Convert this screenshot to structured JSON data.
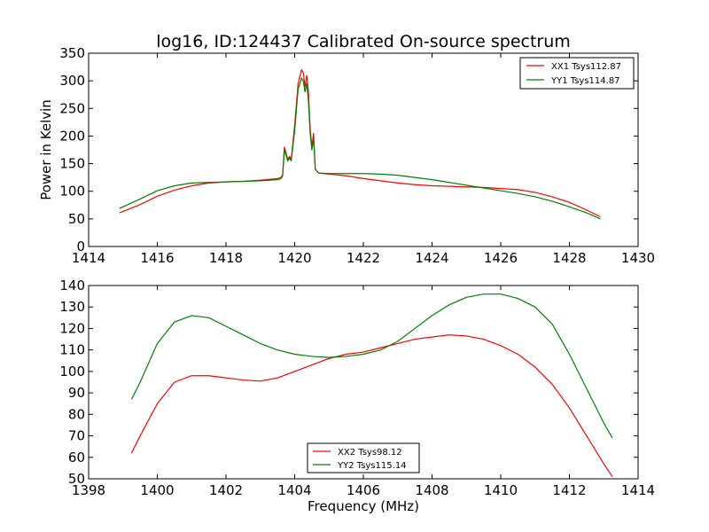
{
  "figure": {
    "title": "log16, ID:124437 Calibrated On-source spectrum"
  },
  "chart_data": [
    {
      "type": "line",
      "ylabel": "Power in Kelvin",
      "xlabel": "",
      "xlim": [
        1414,
        1430
      ],
      "ylim": [
        0,
        350
      ],
      "xticks": [
        1414,
        1416,
        1418,
        1420,
        1422,
        1424,
        1426,
        1428,
        1430
      ],
      "yticks": [
        0,
        50,
        100,
        150,
        200,
        250,
        300,
        350
      ],
      "grid": false,
      "legend_position": "top-right",
      "series": [
        {
          "name": "XX1 Tsys112.87",
          "color": "#ff0000",
          "x": [
            1414.9,
            1415.5,
            1416.0,
            1416.5,
            1417.0,
            1417.5,
            1418.0,
            1418.5,
            1419.0,
            1419.5,
            1419.6,
            1419.65,
            1419.7,
            1419.8,
            1419.85,
            1419.9,
            1420.0,
            1420.1,
            1420.2,
            1420.25,
            1420.3,
            1420.35,
            1420.4,
            1420.45,
            1420.5,
            1420.55,
            1420.6,
            1420.7,
            1421.0,
            1421.5,
            1422.0,
            1422.5,
            1423.0,
            1423.5,
            1424.0,
            1424.5,
            1425.0,
            1425.5,
            1426.0,
            1426.5,
            1427.0,
            1427.5,
            1428.0,
            1428.5,
            1428.9
          ],
          "y": [
            61,
            76,
            91,
            102,
            110,
            115,
            117,
            118,
            120,
            123,
            125,
            130,
            180,
            158,
            163,
            158,
            220,
            295,
            320,
            315,
            290,
            310,
            280,
            215,
            180,
            205,
            140,
            133,
            131,
            128,
            123,
            119,
            115,
            112,
            110,
            109,
            108,
            107,
            105,
            103,
            98,
            90,
            80,
            66,
            54
          ]
        },
        {
          "name": "YY1 Tsys114.87",
          "color": "#008000",
          "x": [
            1414.9,
            1415.5,
            1416.0,
            1416.5,
            1417.0,
            1417.5,
            1418.0,
            1418.5,
            1419.0,
            1419.5,
            1419.6,
            1419.65,
            1419.7,
            1419.8,
            1419.85,
            1419.9,
            1420.0,
            1420.1,
            1420.2,
            1420.25,
            1420.3,
            1420.35,
            1420.4,
            1420.45,
            1420.5,
            1420.55,
            1420.6,
            1420.7,
            1421.0,
            1421.5,
            1422.0,
            1422.5,
            1423.0,
            1423.5,
            1424.0,
            1424.5,
            1425.0,
            1425.5,
            1426.0,
            1426.5,
            1427.0,
            1427.5,
            1428.0,
            1428.5,
            1428.9
          ],
          "y": [
            69,
            86,
            101,
            110,
            115,
            116,
            117,
            118,
            119,
            121,
            123,
            128,
            175,
            155,
            160,
            155,
            210,
            285,
            305,
            300,
            280,
            295,
            265,
            205,
            175,
            195,
            140,
            133,
            132,
            132,
            132,
            131,
            129,
            125,
            121,
            116,
            111,
            106,
            101,
            96,
            90,
            82,
            72,
            61,
            50
          ]
        }
      ]
    },
    {
      "type": "line",
      "xlabel": "Frequency (MHz)",
      "ylabel": "",
      "xlim": [
        1398,
        1414
      ],
      "ylim": [
        50,
        140
      ],
      "xticks": [
        1398,
        1400,
        1402,
        1404,
        1406,
        1408,
        1410,
        1412,
        1414
      ],
      "yticks": [
        50,
        60,
        70,
        80,
        90,
        100,
        110,
        120,
        130,
        140
      ],
      "grid": false,
      "legend_position": "bottom-center",
      "series": [
        {
          "name": "XX2 Tsys98.12",
          "color": "#ff0000",
          "x": [
            1399.25,
            1399.5,
            1400.0,
            1400.5,
            1401.0,
            1401.5,
            1402.0,
            1402.5,
            1403.0,
            1403.5,
            1404.0,
            1404.5,
            1405.0,
            1405.5,
            1406.0,
            1406.5,
            1407.0,
            1407.5,
            1408.0,
            1408.5,
            1409.0,
            1409.5,
            1410.0,
            1410.5,
            1411.0,
            1411.5,
            1412.0,
            1412.5,
            1413.0,
            1413.25
          ],
          "y": [
            62,
            70,
            85,
            95,
            98,
            98,
            97,
            96,
            95.5,
            97,
            100,
            103,
            106,
            108,
            109,
            111,
            113,
            115,
            116,
            117,
            116.5,
            115,
            112,
            108,
            102,
            94,
            83,
            70,
            57,
            51
          ]
        },
        {
          "name": "YY2 Tsys115.14",
          "color": "#008000",
          "x": [
            1399.25,
            1399.5,
            1400.0,
            1400.5,
            1401.0,
            1401.5,
            1402.0,
            1402.5,
            1403.0,
            1403.5,
            1404.0,
            1404.5,
            1405.0,
            1405.5,
            1406.0,
            1406.5,
            1407.0,
            1407.5,
            1408.0,
            1408.5,
            1409.0,
            1409.5,
            1410.0,
            1410.5,
            1411.0,
            1411.5,
            1412.0,
            1412.5,
            1413.0,
            1413.25
          ],
          "y": [
            87,
            95,
            113,
            123,
            126,
            125,
            121,
            117,
            113,
            110,
            108,
            107,
            106.5,
            107,
            108,
            110,
            114,
            120,
            126,
            131,
            134.5,
            136,
            136,
            134,
            130,
            122,
            108,
            92,
            76,
            69
          ]
        }
      ]
    }
  ]
}
